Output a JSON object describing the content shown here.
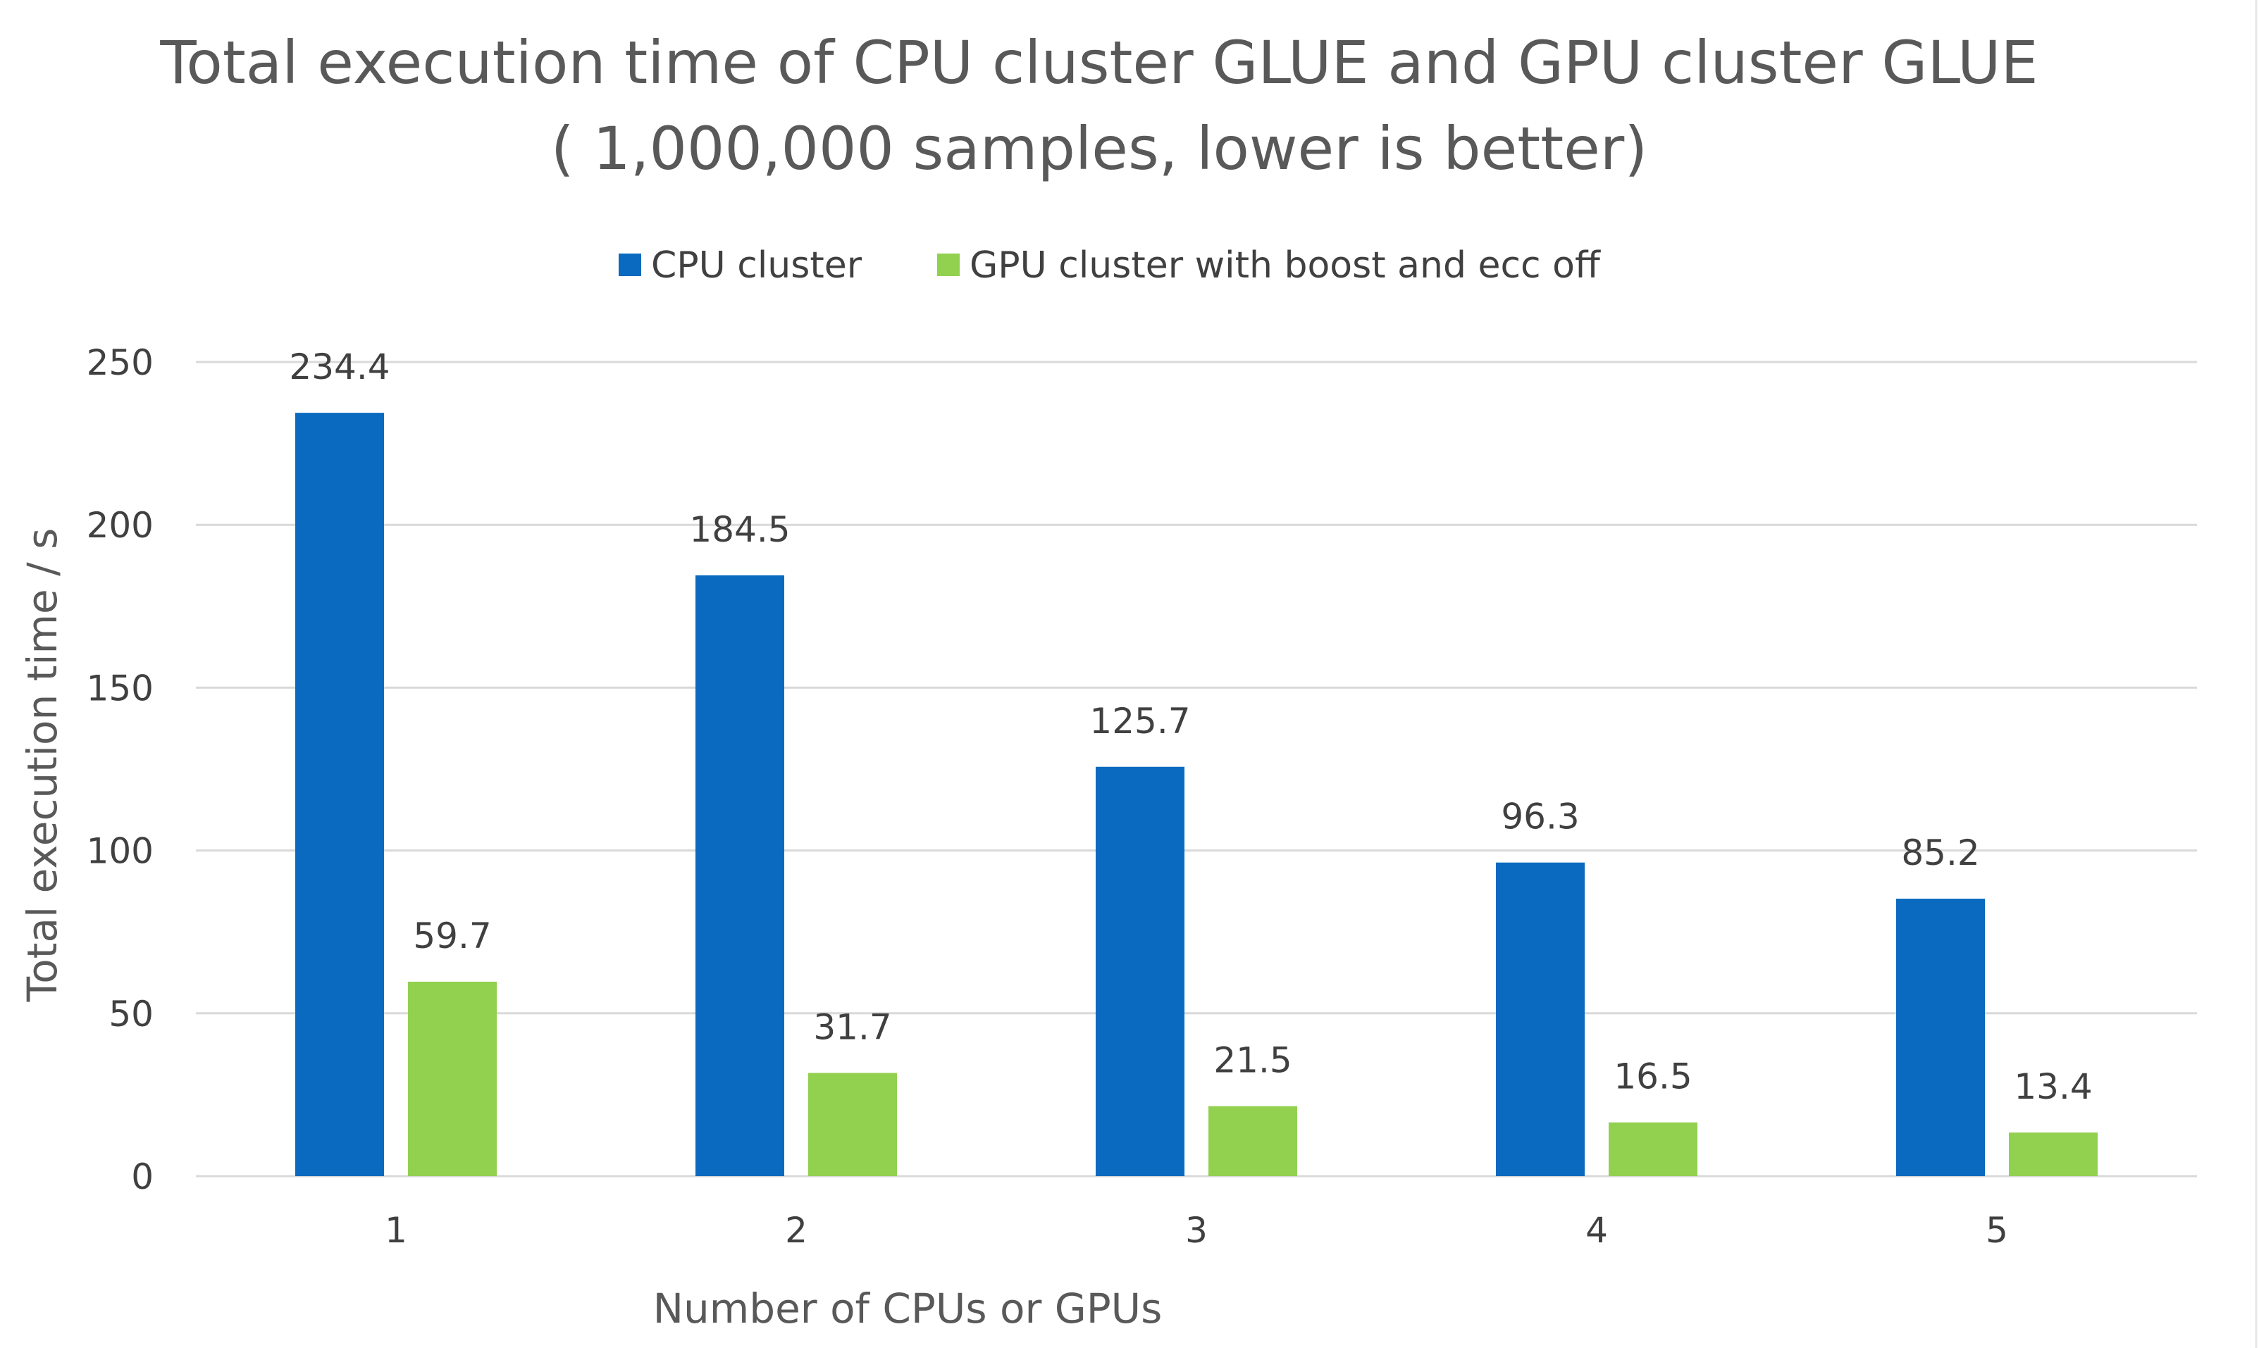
{
  "chart_data": {
    "type": "bar",
    "title": "Total execution time of CPU cluster GLUE and GPU cluster GLUE",
    "subtitle": "( 1,000,000 samples, lower is better)",
    "categories": [
      "1",
      "2",
      "3",
      "4",
      "5"
    ],
    "series": [
      {
        "name": "CPU cluster",
        "color": "#0a6abf",
        "values": [
          234.4,
          184.5,
          125.7,
          96.3,
          85.2
        ]
      },
      {
        "name": "GPU cluster with boost and ecc off",
        "color": "#92d050",
        "values": [
          59.7,
          31.7,
          21.5,
          16.5,
          13.4
        ]
      }
    ],
    "xlabel": "Number of CPUs or GPUs",
    "ylabel": "Total execution time / s",
    "ylim": [
      0,
      250
    ],
    "yticks": [
      "0",
      "50",
      "100",
      "150",
      "200",
      "250"
    ],
    "grid": true,
    "legend_position": "top-center"
  }
}
